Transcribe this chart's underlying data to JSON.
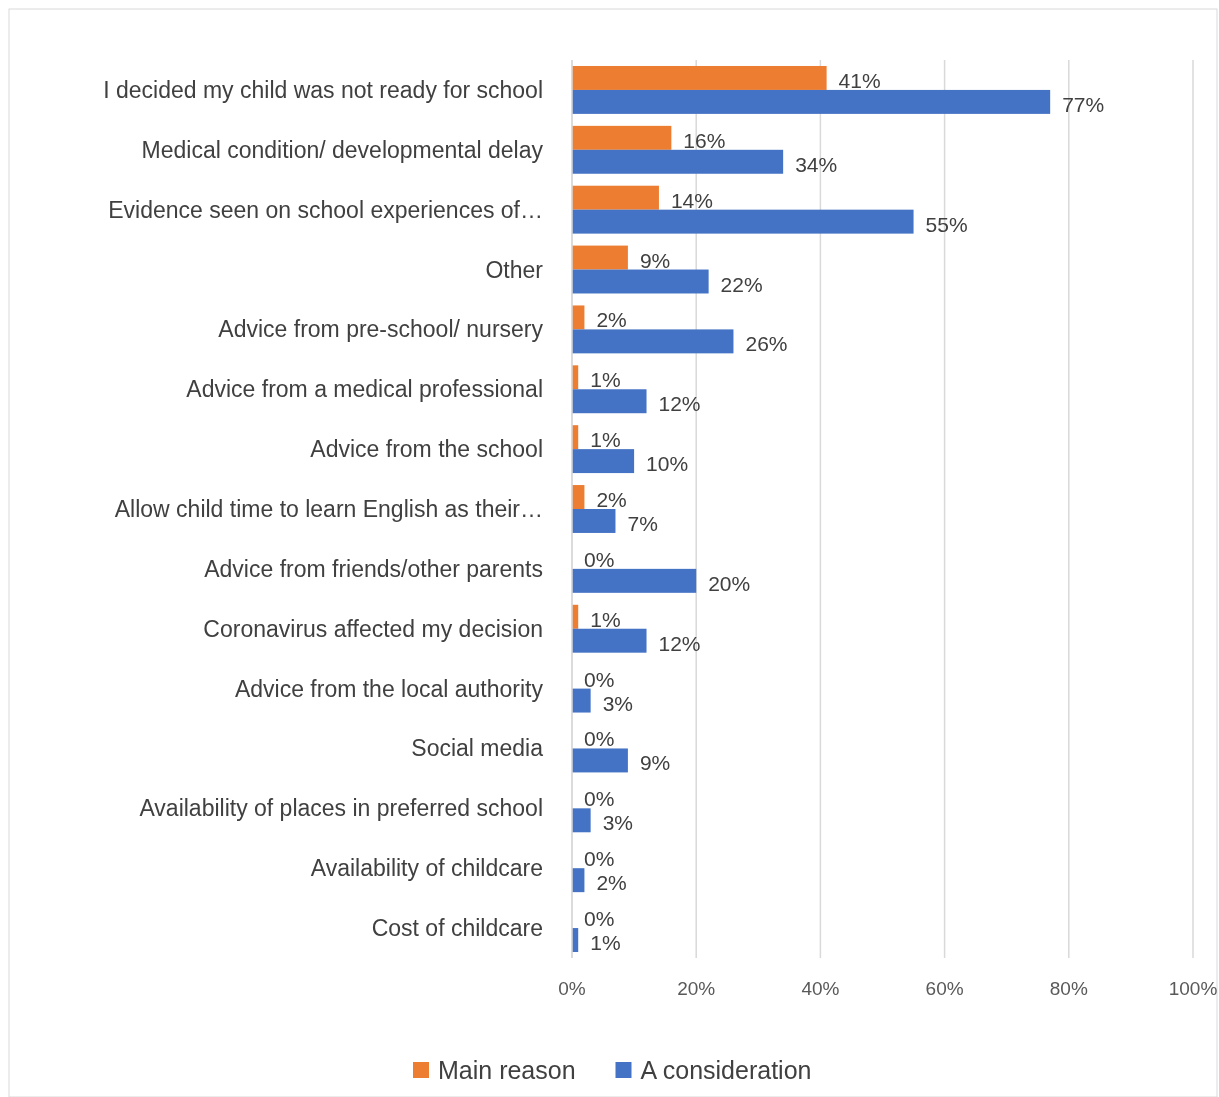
{
  "chart_data": {
    "type": "bar",
    "orientation": "horizontal",
    "categories": [
      "I decided my child was not ready for school",
      "Medical condition/ developmental delay",
      "Evidence seen on school experiences of…",
      "Other",
      "Advice from pre-school/ nursery",
      "Advice from a medical professional",
      "Advice from the school",
      "Allow child time to learn English as their…",
      "Advice from friends/other parents",
      "Coronavirus affected my decision",
      "Advice from the local authority",
      "Social media",
      "Availability of places in preferred school",
      "Availability of childcare",
      "Cost of childcare"
    ],
    "series": [
      {
        "name": "Main reason",
        "color": "#ed7d31",
        "values": [
          41,
          16,
          14,
          9,
          2,
          1,
          1,
          2,
          0,
          1,
          0,
          0,
          0,
          0,
          0
        ],
        "value_labels": [
          "41%",
          "16%",
          "14%",
          "9%",
          "2%",
          "1%",
          "1%",
          "2%",
          "0%",
          "1%",
          "0%",
          "0%",
          "0%",
          "0%",
          "0%"
        ]
      },
      {
        "name": "A consideration",
        "color": "#4472c4",
        "values": [
          77,
          34,
          55,
          22,
          26,
          12,
          10,
          7,
          20,
          12,
          3,
          9,
          3,
          2,
          1
        ],
        "value_labels": [
          "77%",
          "34%",
          "55%",
          "22%",
          "26%",
          "12%",
          "10%",
          "7%",
          "20%",
          "12%",
          "3%",
          "9%",
          "3%",
          "2%",
          "1%"
        ]
      }
    ],
    "xlim": [
      0,
      100
    ],
    "xticks": [
      {
        "value": 0,
        "label": "0%"
      },
      {
        "value": 20,
        "label": "20%"
      },
      {
        "value": 40,
        "label": "40%"
      },
      {
        "value": 60,
        "label": "60%"
      },
      {
        "value": 80,
        "label": "80%"
      },
      {
        "value": 100,
        "label": "100%"
      }
    ],
    "grid": "x",
    "legend": "bottom"
  }
}
